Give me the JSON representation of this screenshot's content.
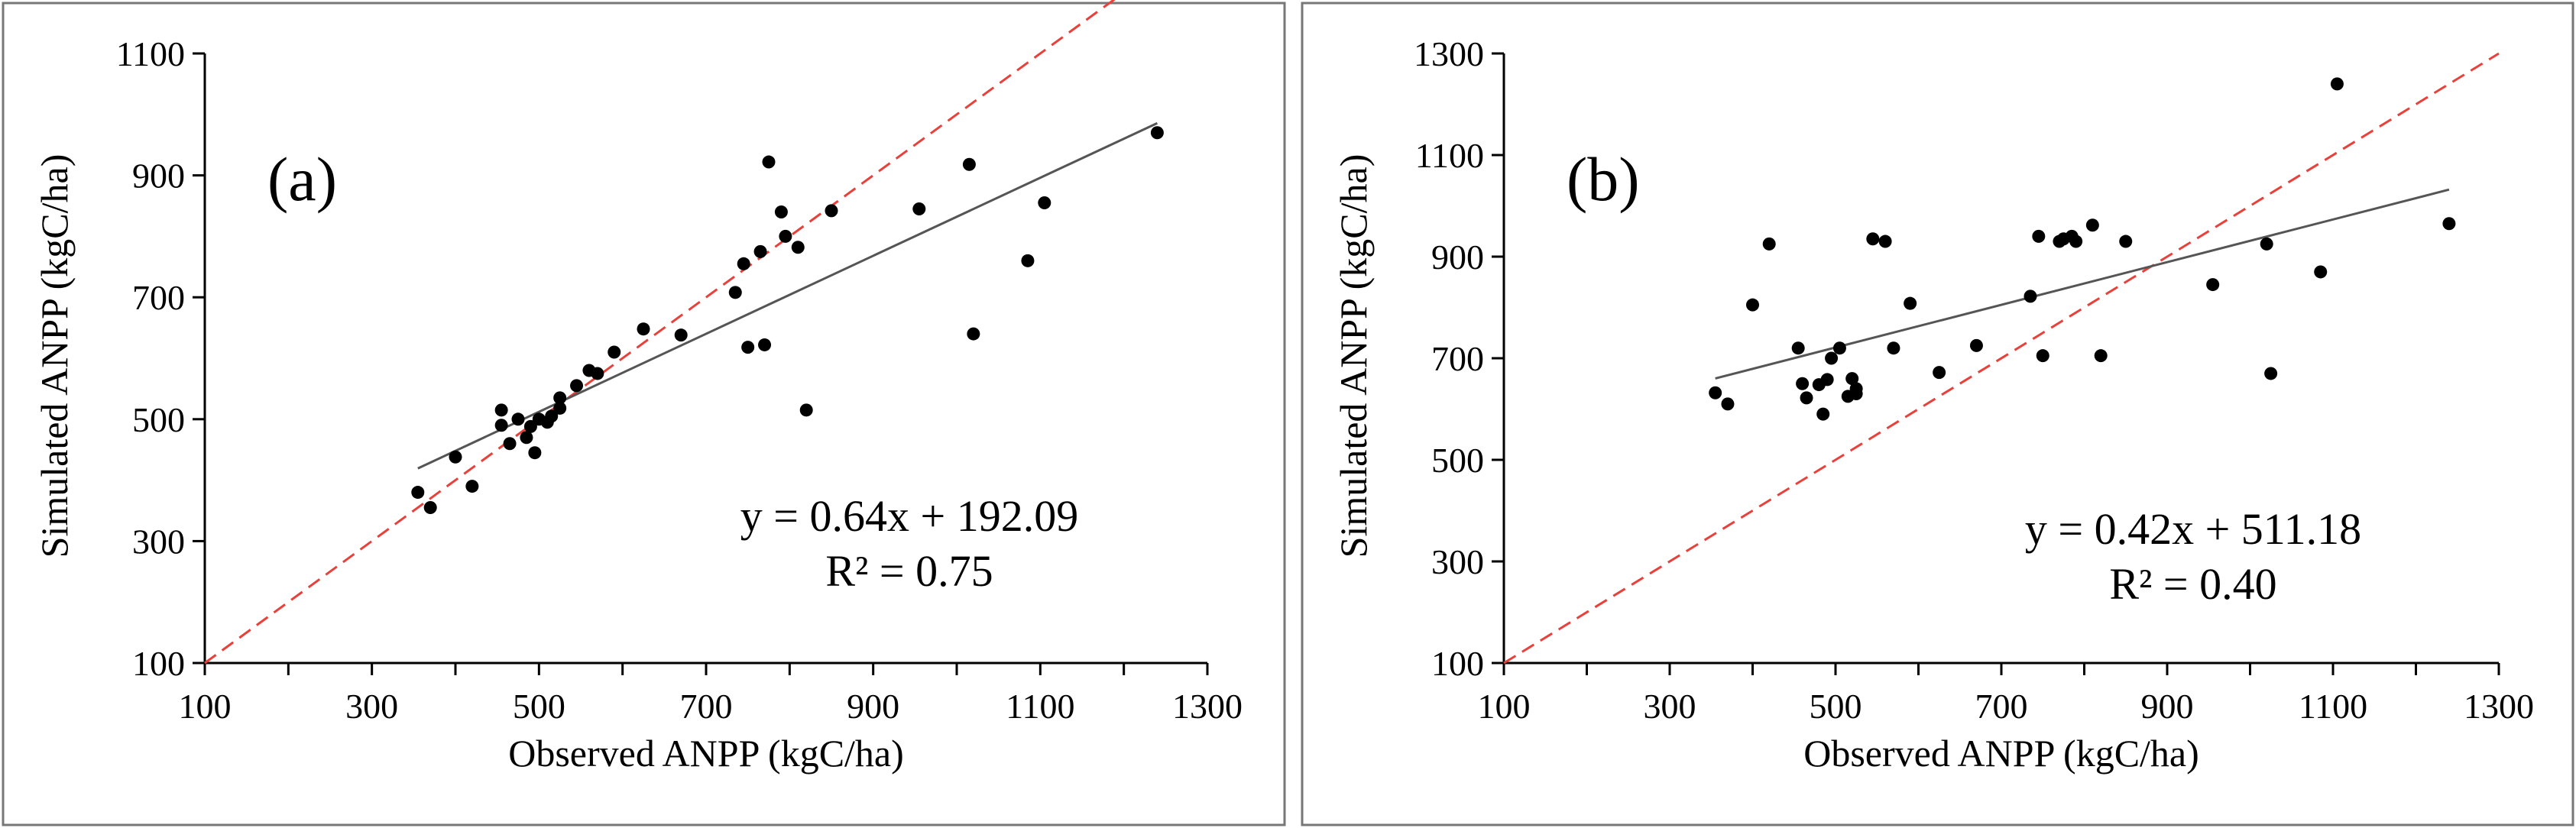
{
  "chart_data": [
    {
      "type": "scatter",
      "panel_label": "(a)",
      "xlabel": "Observed ANPP (kgC/ha)",
      "ylabel": "Simulated ANPP (kgC/ha)",
      "xlim": [
        100,
        1300
      ],
      "ylim": [
        100,
        1100
      ],
      "xticks": [
        "100",
        "300",
        "500",
        "700",
        "900",
        "1100",
        "1300"
      ],
      "yticks": [
        "100",
        "300",
        "500",
        "700",
        "900",
        "1100"
      ],
      "x_minor_step": 100,
      "equation": "y = 0.64x + 192.09",
      "r2": "R² = 0.75",
      "fit": {
        "slope": 0.64,
        "intercept": 192.09,
        "x_range": [
          355,
          1240
        ]
      },
      "one_to_one": {
        "x_range": [
          100,
          1300
        ]
      },
      "points": [
        [
          355,
          380
        ],
        [
          370,
          355
        ],
        [
          400,
          438
        ],
        [
          420,
          390
        ],
        [
          455,
          515
        ],
        [
          455,
          490
        ],
        [
          465,
          460
        ],
        [
          475,
          500
        ],
        [
          485,
          470
        ],
        [
          490,
          488
        ],
        [
          495,
          445
        ],
        [
          500,
          500
        ],
        [
          510,
          495
        ],
        [
          515,
          505
        ],
        [
          525,
          535
        ],
        [
          525,
          518
        ],
        [
          545,
          555
        ],
        [
          560,
          580
        ],
        [
          570,
          575
        ],
        [
          590,
          610
        ],
        [
          625,
          648
        ],
        [
          670,
          638
        ],
        [
          735,
          708
        ],
        [
          745,
          755
        ],
        [
          750,
          618
        ],
        [
          765,
          775
        ],
        [
          770,
          622
        ],
        [
          775,
          922
        ],
        [
          790,
          840
        ],
        [
          795,
          800
        ],
        [
          810,
          782
        ],
        [
          820,
          515
        ],
        [
          850,
          842
        ],
        [
          955,
          845
        ],
        [
          1015,
          918
        ],
        [
          1020,
          640
        ],
        [
          1085,
          760
        ],
        [
          1105,
          855
        ],
        [
          1240,
          970
        ]
      ],
      "colors": {
        "points": "#000000",
        "fit": "#555555",
        "one_to_one": "#e8413b"
      }
    },
    {
      "type": "scatter",
      "panel_label": "(b)",
      "xlabel": "Observed ANPP (kgC/ha)",
      "ylabel": "Simulated ANPP (kgC/ha)",
      "xlim": [
        100,
        1300
      ],
      "ylim": [
        100,
        1300
      ],
      "xticks": [
        "100",
        "300",
        "500",
        "700",
        "900",
        "1100",
        "1300"
      ],
      "yticks": [
        "100",
        "300",
        "500",
        "700",
        "900",
        "1100",
        "1300"
      ],
      "x_minor_step": 100,
      "equation": "y = 0.42x + 511.18",
      "r2": "R² = 0.40",
      "fit": {
        "slope": 0.42,
        "intercept": 511.18,
        "x_range": [
          355,
          1240
        ]
      },
      "one_to_one": {
        "x_range": [
          100,
          1300
        ]
      },
      "points": [
        [
          355,
          632
        ],
        [
          370,
          610
        ],
        [
          400,
          805
        ],
        [
          420,
          925
        ],
        [
          455,
          720
        ],
        [
          460,
          650
        ],
        [
          465,
          622
        ],
        [
          480,
          648
        ],
        [
          485,
          590
        ],
        [
          490,
          658
        ],
        [
          495,
          700
        ],
        [
          505,
          720
        ],
        [
          515,
          625
        ],
        [
          520,
          660
        ],
        [
          525,
          640
        ],
        [
          525,
          630
        ],
        [
          545,
          935
        ],
        [
          560,
          930
        ],
        [
          570,
          720
        ],
        [
          590,
          808
        ],
        [
          625,
          672
        ],
        [
          670,
          725
        ],
        [
          735,
          822
        ],
        [
          745,
          940
        ],
        [
          750,
          705
        ],
        [
          770,
          930
        ],
        [
          775,
          935
        ],
        [
          785,
          940
        ],
        [
          790,
          930
        ],
        [
          810,
          962
        ],
        [
          820,
          705
        ],
        [
          850,
          930
        ],
        [
          955,
          845
        ],
        [
          1020,
          925
        ],
        [
          1025,
          670
        ],
        [
          1085,
          870
        ],
        [
          1105,
          1240
        ],
        [
          1240,
          965
        ]
      ],
      "colors": {
        "points": "#000000",
        "fit": "#555555",
        "one_to_one": "#e8413b"
      }
    }
  ]
}
